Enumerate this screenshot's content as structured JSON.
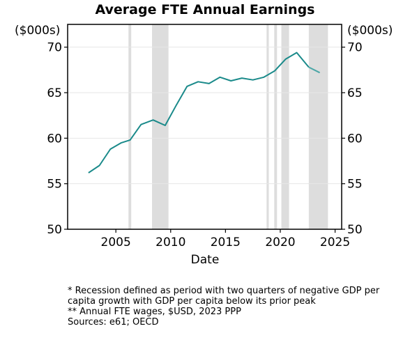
{
  "chart_data": {
    "type": "line",
    "title": "Average FTE Annual Earnings",
    "xlabel": "Date",
    "ylabel_left": "($000s)",
    "ylabel_right": "($000s)",
    "xlim": [
      2000.6,
      2025.6
    ],
    "ylim": [
      50,
      72.5
    ],
    "x_ticks": [
      2005,
      2010,
      2015,
      2020,
      2025
    ],
    "y_ticks": [
      50,
      55,
      60,
      65,
      70
    ],
    "grid": "horizontal",
    "series": [
      {
        "color": "#1a8a8a",
        "x": [
          2002.5,
          2003.5,
          2004.5,
          2005.5,
          2006.3,
          2007.3,
          2008.4,
          2009.5,
          2010.5,
          2011.5,
          2012.5,
          2013.5,
          2014.5,
          2015.5,
          2016.5,
          2017.5,
          2018.5,
          2019.5,
          2020.5,
          2021.5,
          2022.6
        ],
        "y": [
          56.2,
          57.0,
          58.8,
          59.5,
          59.8,
          61.5,
          62.0,
          61.4,
          63.6,
          65.7,
          66.2,
          66.0,
          66.7,
          66.3,
          66.6,
          66.4,
          66.7,
          67.4,
          68.7,
          69.4,
          67.8
        ]
      },
      {
        "color": "#4aa6a6",
        "x": [
          2022.6,
          2023.6
        ],
        "y": [
          67.8,
          67.2
        ]
      }
    ],
    "recessions": [
      [
        2006.15,
        2006.4
      ],
      [
        2008.3,
        2009.8
      ],
      [
        2018.75,
        2018.95
      ],
      [
        2019.45,
        2019.7
      ],
      [
        2020.1,
        2020.8
      ],
      [
        2022.6,
        2024.35
      ]
    ],
    "colors": {
      "recession": "#dddddd",
      "grid": "#e6e6e6"
    }
  },
  "notes": [
    "* Recession defined as period with two quarters of negative GDP per capita growth with GDP per capita below its prior peak",
    "** Annual FTE wages, $USD, 2023 PPP",
    "Sources: e61; OECD"
  ]
}
